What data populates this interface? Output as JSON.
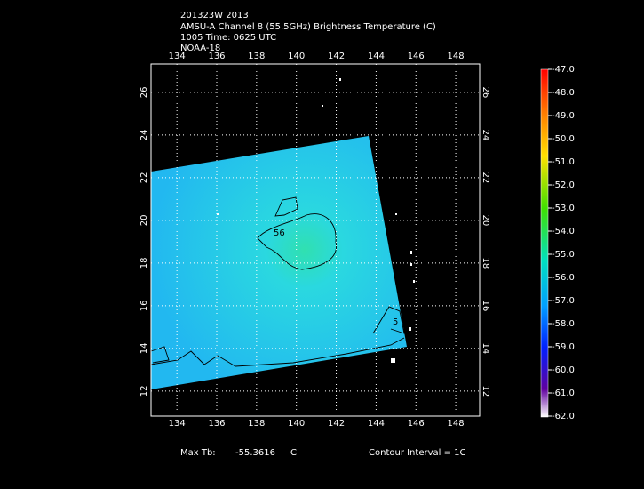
{
  "header": {
    "lines": [
      "201323W 2013",
      "AMSU-A Channel 8 (55.5GHz) Brightness Temperature (C)",
      "1005 Time: 0625 UTC",
      "NOAA-18"
    ]
  },
  "map": {
    "lonlim": [
      132.7,
      149.2
    ],
    "latlim": [
      10.83,
      27.33
    ],
    "lonticks": [
      134,
      136,
      138,
      140,
      142,
      144,
      146,
      148
    ],
    "latticks": [
      12,
      14,
      16,
      18,
      20,
      22,
      24,
      26
    ],
    "contour_labels": [
      "56",
      "5"
    ]
  },
  "colorbar": {
    "lim": [
      -62,
      -47
    ],
    "ticks": [
      {
        "value": -47,
        "label": "-47.0"
      },
      {
        "value": -48,
        "label": "-48.0"
      },
      {
        "value": -49,
        "label": "-49.0"
      },
      {
        "value": -50,
        "label": "-50.0"
      },
      {
        "value": -51,
        "label": "-51.0"
      },
      {
        "value": -52,
        "label": "-52.0"
      },
      {
        "value": -53,
        "label": "-53.0"
      },
      {
        "value": -54,
        "label": "-54.0"
      },
      {
        "value": -55,
        "label": "-55.0"
      },
      {
        "value": -56,
        "label": "-56.0"
      },
      {
        "value": -57,
        "label": "-57.0"
      },
      {
        "value": -58,
        "label": "-58.0"
      },
      {
        "value": -59,
        "label": "-59.0"
      },
      {
        "value": -60,
        "label": "-60.0"
      },
      {
        "value": -61,
        "label": "-61.0"
      },
      {
        "value": -62,
        "label": "-62.0"
      }
    ]
  },
  "footer": {
    "max_label": "Max Tb:",
    "max_value": "-55.3616",
    "unit": "C",
    "contour": "Contour Interval = 1C"
  }
}
